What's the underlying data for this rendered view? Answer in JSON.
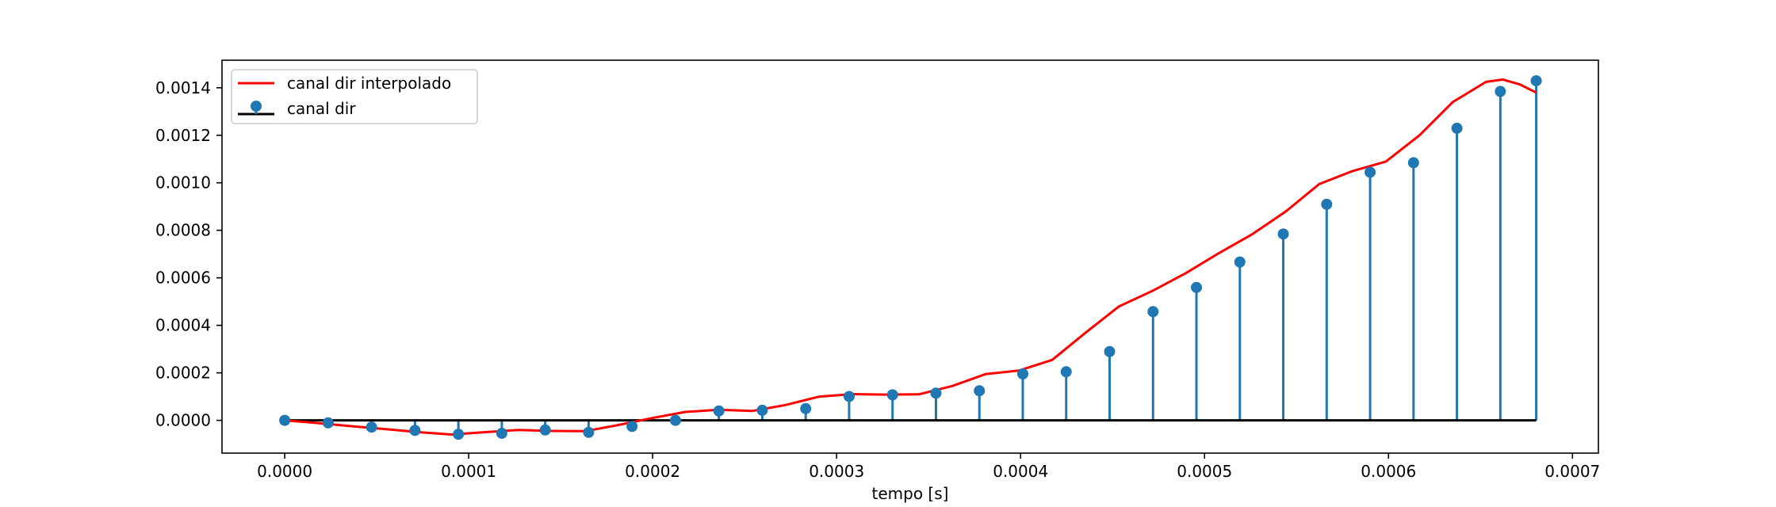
{
  "chart_data": {
    "type": "stem",
    "title": "",
    "xlabel": "tempo [s]",
    "ylabel": "",
    "xlim": [
      -3.41e-05,
      0.0007141
    ],
    "ylim": [
      -0.000138,
      0.001516
    ],
    "x_ticks": [
      0.0,
      0.0001,
      0.0002,
      0.0003,
      0.0004,
      0.0005,
      0.0006,
      0.0007
    ],
    "x_tick_labels": [
      "0.0000",
      "0.0001",
      "0.0002",
      "0.0003",
      "0.0004",
      "0.0005",
      "0.0006",
      "0.0007"
    ],
    "y_ticks": [
      0.0,
      0.0002,
      0.0004,
      0.0006,
      0.0008,
      0.001,
      0.0012,
      0.0014
    ],
    "y_tick_labels": [
      "0.0000",
      "0.0002",
      "0.0004",
      "0.0006",
      "0.0008",
      "0.0010",
      "0.0012",
      "0.0014"
    ],
    "grid": false,
    "legend_position": "top-left",
    "series": [
      {
        "name": "canal dir interpolado",
        "kind": "line",
        "color": "#ff0000",
        "x": [
          0.0,
          1.81e-05,
          3.63e-05,
          5.44e-05,
          7.26e-05,
          9.07e-05,
          0.0001089,
          0.000127,
          0.0001451,
          0.0001633,
          0.0001814,
          0.0001995,
          0.0002177,
          0.0002358,
          0.000254,
          0.0002721,
          0.0002902,
          0.0003084,
          0.0003265,
          0.0003447,
          0.0003628,
          0.0003809,
          0.0003991,
          0.0004172,
          0.0004354,
          0.0004535,
          0.0004716,
          0.0004898,
          0.0005079,
          0.0005261,
          0.0005442,
          0.0005623,
          0.0005805,
          0.0005986,
          0.0006168,
          0.0006349,
          0.000653,
          0.0006621,
          0.0006712,
          0.0006803
        ],
        "y": [
          0.0,
          -1.15e-05,
          -2.45e-05,
          -3.65e-05,
          -4.95e-05,
          -5.95e-05,
          -4.95e-05,
          -4.05e-05,
          -4.45e-05,
          -4.55e-05,
          -1.95e-05,
          9.5e-06,
          3.55e-05,
          4.45e-05,
          3.95e-05,
          6.45e-05,
          9.95e-05,
          0.0001105,
          0.0001085,
          0.0001095,
          0.0001445,
          0.0001945,
          0.0002095,
          0.0002545,
          0.0003695,
          0.0004795,
          0.0005445,
          0.0006195,
          0.0007045,
          0.0007845,
          0.0008795,
          0.0009945,
          0.0010495,
          0.0010895,
          0.0011995,
          0.0013395,
          0.0014245,
          0.0014345,
          0.0014145,
          0.0013795
        ]
      },
      {
        "name": "canal dir",
        "kind": "stem",
        "marker_color": "#1f77b4",
        "baseline_color": "#000000",
        "x": [
          0.0,
          2.36e-05,
          4.72e-05,
          7.08e-05,
          9.44e-05,
          0.000118,
          0.0001416,
          0.0001652,
          0.0001888,
          0.0002124,
          0.000236,
          0.0002596,
          0.0002832,
          0.0003068,
          0.0003304,
          0.000354,
          0.0003776,
          0.0004012,
          0.0004248,
          0.0004484,
          0.000472,
          0.0004956,
          0.0005192,
          0.0005428,
          0.0005664,
          0.00059,
          0.0006136,
          0.0006372,
          0.0006608,
          0.0006803
        ],
        "y": [
          0.0,
          -1.05e-05,
          -2.85e-05,
          -4.25e-05,
          -5.85e-05,
          -5.45e-05,
          -4.05e-05,
          -5.05e-05,
          -2.55e-05,
          0.0,
          3.95e-05,
          4.25e-05,
          4.95e-05,
          0.0001005,
          0.0001075,
          0.0001145,
          0.0001245,
          0.0001955,
          0.0002045,
          0.0002895,
          0.0004575,
          0.0005595,
          0.0006665,
          0.0007845,
          0.0009095,
          0.0010445,
          0.0010845,
          0.0012295,
          0.0013845,
          0.0014295
        ]
      }
    ]
  }
}
